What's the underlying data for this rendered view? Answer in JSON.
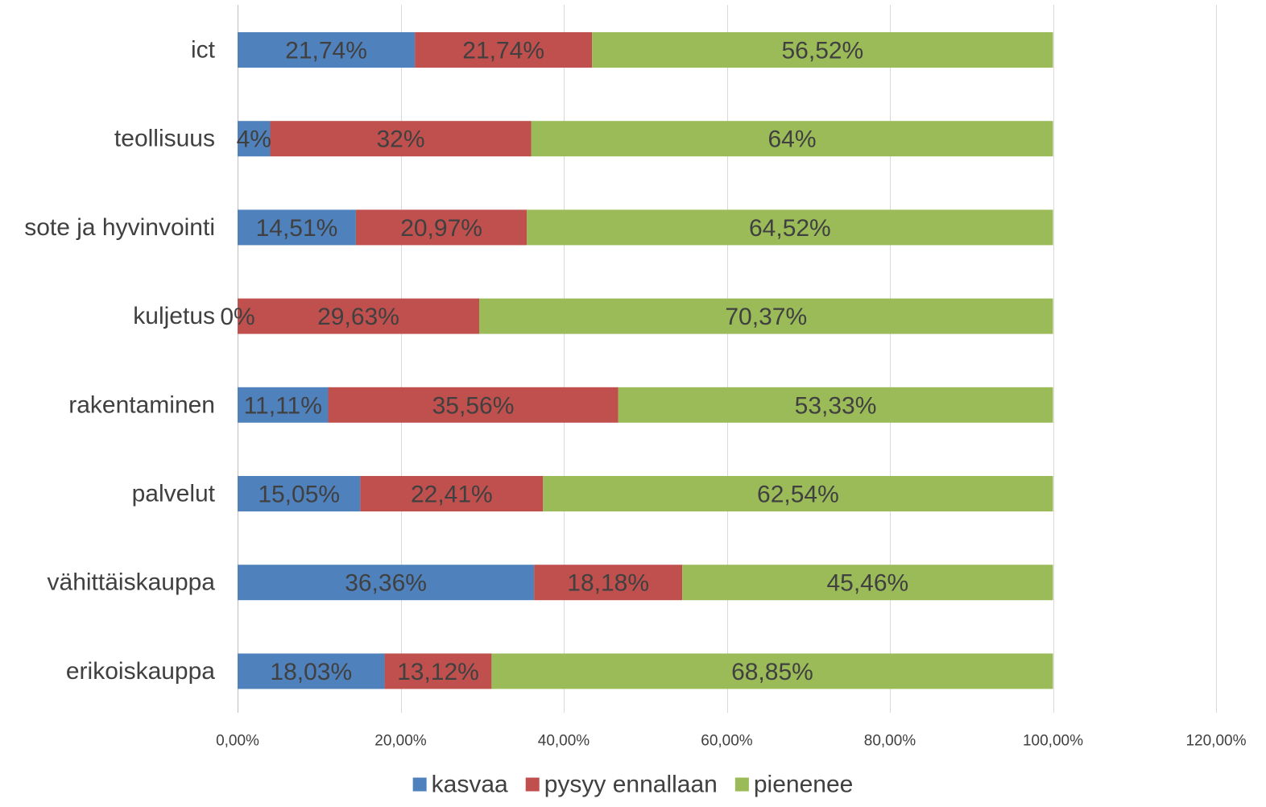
{
  "chart_data": {
    "type": "bar",
    "orientation": "horizontal",
    "stacked": true,
    "categories": [
      "ict",
      "teollisuus",
      "sote ja hyvinvointi",
      "kuljetus",
      "rakentaminen",
      "palvelut",
      "vähittäiskauppa",
      "erikoiskauppa"
    ],
    "series": [
      {
        "name": "kasvaa",
        "color": "#4f81bd",
        "values": [
          21.74,
          4,
          14.51,
          0,
          11.11,
          15.05,
          36.36,
          18.03
        ],
        "labels": [
          "21,74%",
          "4%",
          "14,51%",
          "0%",
          "11,11%",
          "15,05%",
          "36,36%",
          "18,03%"
        ]
      },
      {
        "name": "pysyy ennallaan",
        "color": "#c0504d",
        "values": [
          21.74,
          32,
          20.97,
          29.63,
          35.56,
          22.41,
          18.18,
          13.12
        ],
        "labels": [
          "21,74%",
          "32%",
          "20,97%",
          "29,63%",
          "35,56%",
          "22,41%",
          "18,18%",
          "13,12%"
        ]
      },
      {
        "name": "pienenee",
        "color": "#9bbb59",
        "values": [
          56.52,
          64,
          64.52,
          70.37,
          53.33,
          62.54,
          45.46,
          68.85
        ],
        "labels": [
          "56,52%",
          "64%",
          "64,52%",
          "70,37%",
          "53,33%",
          "62,54%",
          "45,46%",
          "68,85%"
        ]
      }
    ],
    "xlim": [
      0,
      120
    ],
    "xticks": [
      0,
      20,
      40,
      60,
      80,
      100,
      120
    ],
    "xtick_labels": [
      "0,00%",
      "20,00%",
      "40,00%",
      "60,00%",
      "80,00%",
      "100,00%",
      "120,00%"
    ],
    "grid": true,
    "legend_position": "bottom",
    "title": "",
    "xlabel": "",
    "ylabel": ""
  }
}
